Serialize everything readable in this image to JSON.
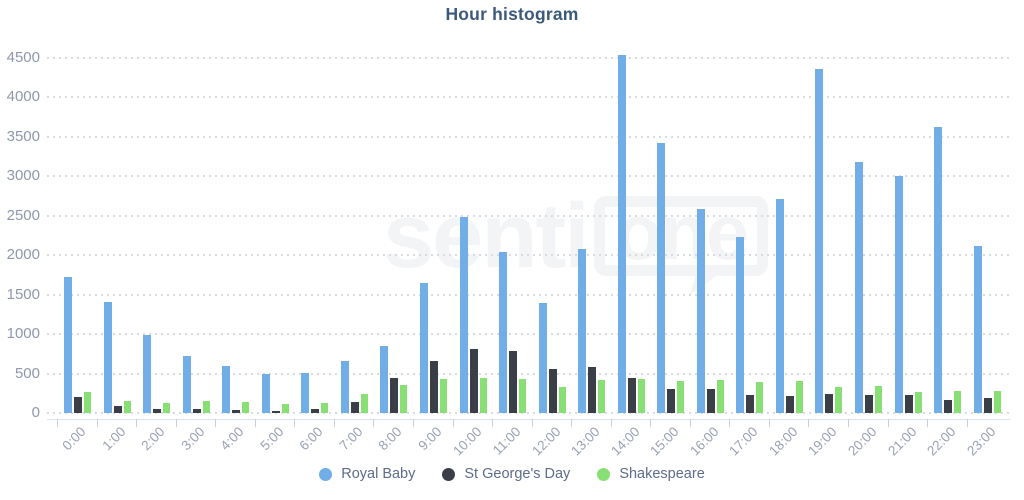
{
  "chart_data": {
    "type": "bar",
    "title": "Hour histogram",
    "categories": [
      "0:00",
      "1:00",
      "2:00",
      "3:00",
      "4:00",
      "5:00",
      "6:00",
      "7:00",
      "8:00",
      "9:00",
      "10:00",
      "11:00",
      "12:00",
      "13:00",
      "14:00",
      "15:00",
      "16:00",
      "17:00",
      "18:00",
      "19:00",
      "20:00",
      "21:00",
      "22:00",
      "23:00"
    ],
    "series": [
      {
        "name": "Royal Baby",
        "color": "#71aee7",
        "values": [
          1720,
          1410,
          990,
          720,
          590,
          490,
          505,
          655,
          850,
          1650,
          2480,
          2040,
          1400,
          2080,
          4540,
          3420,
          2580,
          2230,
          2710,
          4360,
          3180,
          3010,
          3620,
          2120
        ]
      },
      {
        "name": "St George's Day",
        "color": "#3a3f47",
        "values": [
          200,
          85,
          55,
          45,
          40,
          30,
          50,
          135,
          440,
          660,
          810,
          790,
          555,
          580,
          440,
          300,
          300,
          230,
          220,
          235,
          225,
          225,
          160,
          190
        ]
      },
      {
        "name": "Shakespeare",
        "color": "#88df74",
        "values": [
          270,
          155,
          130,
          155,
          145,
          120,
          130,
          240,
          350,
          430,
          450,
          435,
          335,
          415,
          430,
          400,
          415,
          395,
          400,
          330,
          340,
          270,
          280,
          285
        ]
      }
    ],
    "xlabel": "",
    "ylabel": "",
    "ylim": [
      0,
      4500
    ],
    "ytick_step": 500,
    "grid": "dotted-horizontal",
    "legend_position": "bottom"
  },
  "watermark": {
    "part1": "senti",
    "part2": "one"
  }
}
